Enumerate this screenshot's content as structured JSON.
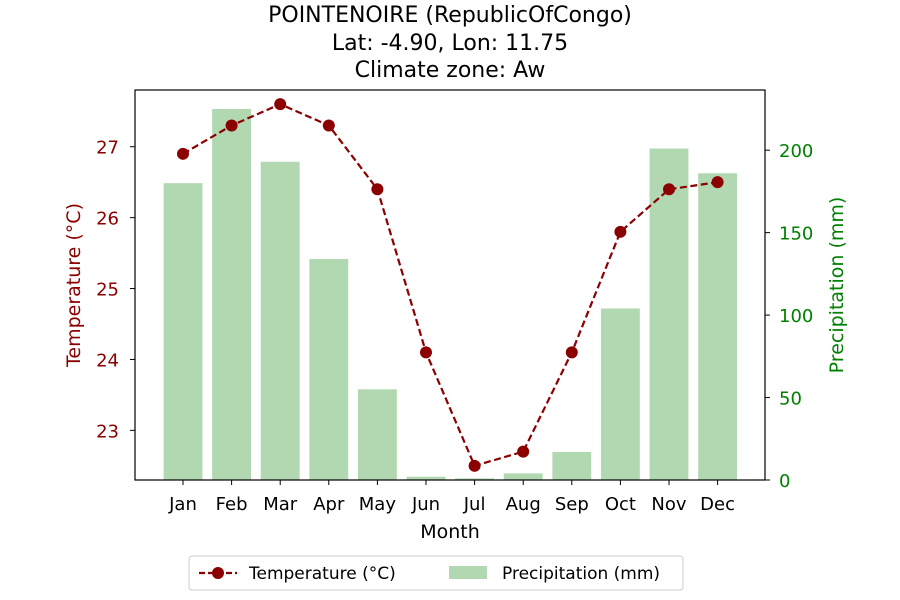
{
  "chart_data": {
    "type": "bar+line",
    "title_lines": [
      "POINTENOIRE (RepublicOfCongo)",
      "Lat: -4.90, Lon: 11.75",
      "Climate zone: Aw"
    ],
    "xlabel": "Month",
    "ylabel_left": "Temperature (°C)",
    "ylabel_right": "Precipitation (mm)",
    "categories": [
      "Jan",
      "Feb",
      "Mar",
      "Apr",
      "May",
      "Jun",
      "Jul",
      "Aug",
      "Sep",
      "Oct",
      "Nov",
      "Dec"
    ],
    "temperature": {
      "name": "Temperature (°C)",
      "values": [
        26.9,
        27.3,
        27.6,
        27.3,
        26.4,
        24.1,
        22.5,
        22.7,
        24.1,
        25.8,
        26.4,
        26.5
      ],
      "ylim": [
        22.3,
        27.8
      ],
      "ticks": [
        23,
        24,
        25,
        26,
        27
      ]
    },
    "precipitation": {
      "name": "Precipitation (mm)",
      "values": [
        180,
        225,
        193,
        134,
        55,
        2,
        1,
        4,
        17,
        104,
        201,
        186
      ],
      "ylim": [
        0,
        236.5
      ],
      "ticks": [
        0,
        50,
        100,
        150,
        200
      ]
    },
    "colors": {
      "temperature": "#8b0000",
      "precipitation": "#008000",
      "bar_fill": "#b2d8b2"
    },
    "legend_position": "bottom-center",
    "grid": false
  }
}
